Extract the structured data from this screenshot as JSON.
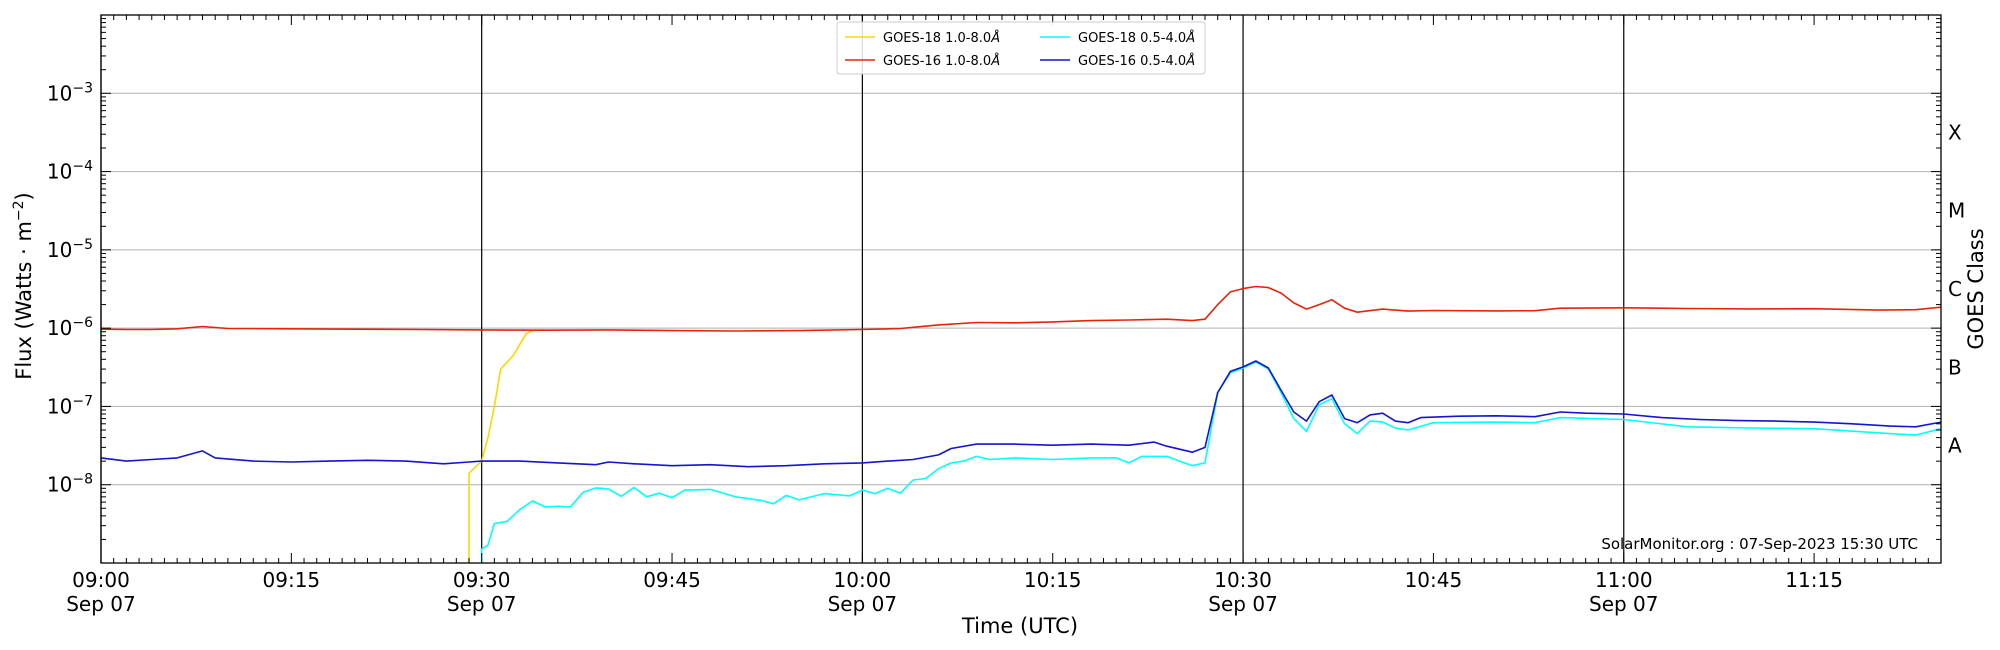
{
  "chart_data": {
    "type": "line",
    "xlabel": "Time (UTC)",
    "ylabel_main": "Flux (Watts · m",
    "ylabel_sup": "−2",
    "ylabel_close": ")",
    "right_axis_label": "GOES Class",
    "credit": "SolarMonitor.org : 07-Sep-2023 15:30 UTC",
    "y_scale": "log",
    "ylim": [
      1e-09,
      0.01
    ],
    "xlim": [
      "09:00",
      "11:25"
    ],
    "grid": "horizontal at decades",
    "legend_placement": "top-center",
    "x_ticks": [
      {
        "time": "09:00",
        "label": "09:00",
        "sublabel": "Sep 07"
      },
      {
        "time": "09:15",
        "label": "09:15",
        "sublabel": ""
      },
      {
        "time": "09:30",
        "label": "09:30",
        "sublabel": "Sep 07"
      },
      {
        "time": "09:45",
        "label": "09:45",
        "sublabel": ""
      },
      {
        "time": "10:00",
        "label": "10:00",
        "sublabel": "Sep 07"
      },
      {
        "time": "10:15",
        "label": "10:15",
        "sublabel": ""
      },
      {
        "time": "10:30",
        "label": "10:30",
        "sublabel": "Sep 07"
      },
      {
        "time": "10:45",
        "label": "10:45",
        "sublabel": ""
      },
      {
        "time": "11:00",
        "label": "11:00",
        "sublabel": "Sep 07"
      },
      {
        "time": "11:15",
        "label": "11:15",
        "sublabel": ""
      }
    ],
    "vertical_lines": [
      "09:00",
      "09:30",
      "10:00",
      "10:30",
      "11:00"
    ],
    "y_ticks": [
      {
        "exp": -8,
        "base": "10",
        "sup": "−8"
      },
      {
        "exp": -7,
        "base": "10",
        "sup": "−7"
      },
      {
        "exp": -6,
        "base": "10",
        "sup": "−6"
      },
      {
        "exp": -5,
        "base": "10",
        "sup": "−5"
      },
      {
        "exp": -4,
        "base": "10",
        "sup": "−4"
      },
      {
        "exp": -3,
        "base": "10",
        "sup": "−3"
      }
    ],
    "goes_classes": [
      {
        "label": "A",
        "flux": 3.16e-08
      },
      {
        "label": "B",
        "flux": 3.16e-07
      },
      {
        "label": "C",
        "flux": 3.16e-06
      },
      {
        "label": "M",
        "flux": 3.16e-05
      },
      {
        "label": "X",
        "flux": 0.000316
      }
    ],
    "series": [
      {
        "name": "GOES-18 1.0-8.0",
        "unit_label": "Å",
        "color": "#ffd700",
        "points": [
          [
            "09:29",
            1e-09
          ],
          [
            "09:29",
            1.4e-08
          ],
          [
            "09:30",
            2e-08
          ],
          [
            "09:30:30",
            4e-08
          ],
          [
            "09:31",
            1e-07
          ],
          [
            "09:31:30",
            3e-07
          ],
          [
            "09:32:30",
            4.5e-07
          ],
          [
            "09:33:30",
            8.5e-07
          ],
          [
            "09:34",
            9.3e-07
          ],
          [
            "09:35",
            9.5e-07
          ]
        ]
      },
      {
        "name": "GOES-16 1.0-8.0",
        "unit_label": "Å",
        "color": "#e8230a",
        "points": [
          [
            "09:00",
            9.7e-07
          ],
          [
            "09:02",
            9.6e-07
          ],
          [
            "09:04",
            9.6e-07
          ],
          [
            "09:06",
            9.8e-07
          ],
          [
            "09:08",
            1.05e-06
          ],
          [
            "09:10",
            9.9e-07
          ],
          [
            "09:15",
            9.8e-07
          ],
          [
            "09:20",
            9.7e-07
          ],
          [
            "09:25",
            9.6e-07
          ],
          [
            "09:30",
            9.5e-07
          ],
          [
            "09:35",
            9.4e-07
          ],
          [
            "09:40",
            9.5e-07
          ],
          [
            "09:45",
            9.3e-07
          ],
          [
            "09:50",
            9.2e-07
          ],
          [
            "09:55",
            9.3e-07
          ],
          [
            "10:00",
            9.6e-07
          ],
          [
            "10:03",
            9.9e-07
          ],
          [
            "10:06",
            1.1e-06
          ],
          [
            "10:09",
            1.18e-06
          ],
          [
            "10:12",
            1.17e-06
          ],
          [
            "10:15",
            1.2e-06
          ],
          [
            "10:18",
            1.25e-06
          ],
          [
            "10:21",
            1.27e-06
          ],
          [
            "10:24",
            1.3e-06
          ],
          [
            "10:26",
            1.25e-06
          ],
          [
            "10:27",
            1.3e-06
          ],
          [
            "10:28",
            2e-06
          ],
          [
            "10:29",
            2.9e-06
          ],
          [
            "10:30",
            3.2e-06
          ],
          [
            "10:31",
            3.4e-06
          ],
          [
            "10:32",
            3.3e-06
          ],
          [
            "10:33",
            2.8e-06
          ],
          [
            "10:34",
            2.1e-06
          ],
          [
            "10:35",
            1.75e-06
          ],
          [
            "10:36",
            2e-06
          ],
          [
            "10:37",
            2.3e-06
          ],
          [
            "10:38",
            1.8e-06
          ],
          [
            "10:39",
            1.6e-06
          ],
          [
            "10:41",
            1.75e-06
          ],
          [
            "10:43",
            1.65e-06
          ],
          [
            "10:45",
            1.68e-06
          ],
          [
            "10:50",
            1.66e-06
          ],
          [
            "10:53",
            1.67e-06
          ],
          [
            "10:55",
            1.8e-06
          ],
          [
            "11:00",
            1.82e-06
          ],
          [
            "11:05",
            1.78e-06
          ],
          [
            "11:10",
            1.76e-06
          ],
          [
            "11:15",
            1.77e-06
          ],
          [
            "11:20",
            1.7e-06
          ],
          [
            "11:23",
            1.72e-06
          ],
          [
            "11:25",
            1.85e-06
          ]
        ]
      },
      {
        "name": "GOES-18 0.5-4.0",
        "unit_label": "Å",
        "color": "#00ffff",
        "points": [
          [
            "09:30",
            1e-09
          ],
          [
            "09:30",
            1.5e-09
          ],
          [
            "09:30:30",
            1.7e-09
          ],
          [
            "09:31",
            3.2e-09
          ],
          [
            "09:32",
            3.4e-09
          ],
          [
            "09:33",
            4.8e-09
          ],
          [
            "09:34",
            6.2e-09
          ],
          [
            "09:35",
            5.2e-09
          ],
          [
            "09:36",
            5.3e-09
          ],
          [
            "09:37",
            5.2e-09
          ],
          [
            "09:38",
            8e-09
          ],
          [
            "09:39",
            9.1e-09
          ],
          [
            "09:40",
            8.8e-09
          ],
          [
            "09:41",
            7.1e-09
          ],
          [
            "09:42",
            9.2e-09
          ],
          [
            "09:43",
            7e-09
          ],
          [
            "09:44",
            7.8e-09
          ],
          [
            "09:45",
            6.8e-09
          ],
          [
            "09:46",
            8.5e-09
          ],
          [
            "09:48",
            8.7e-09
          ],
          [
            "09:50",
            7e-09
          ],
          [
            "09:52",
            6.3e-09
          ],
          [
            "09:53",
            5.7e-09
          ],
          [
            "09:54",
            7.3e-09
          ],
          [
            "09:55",
            6.4e-09
          ],
          [
            "09:57",
            7.7e-09
          ],
          [
            "09:59",
            7.2e-09
          ],
          [
            "10:00",
            8.5e-09
          ],
          [
            "10:01",
            7.7e-09
          ],
          [
            "10:02",
            9e-09
          ],
          [
            "10:03",
            7.8e-09
          ],
          [
            "10:04",
            1.15e-08
          ],
          [
            "10:05",
            1.2e-08
          ],
          [
            "10:06",
            1.6e-08
          ],
          [
            "10:07",
            1.9e-08
          ],
          [
            "10:08",
            2e-08
          ],
          [
            "10:09",
            2.3e-08
          ],
          [
            "10:10",
            2.1e-08
          ],
          [
            "10:12",
            2.2e-08
          ],
          [
            "10:15",
            2.1e-08
          ],
          [
            "10:18",
            2.2e-08
          ],
          [
            "10:20",
            2.2e-08
          ],
          [
            "10:21",
            1.9e-08
          ],
          [
            "10:22",
            2.3e-08
          ],
          [
            "10:24",
            2.3e-08
          ],
          [
            "10:25",
            2e-08
          ],
          [
            "10:26",
            1.75e-08
          ],
          [
            "10:27",
            1.9e-08
          ],
          [
            "10:28",
            1.5e-07
          ],
          [
            "10:29",
            2.7e-07
          ],
          [
            "10:30",
            3.1e-07
          ],
          [
            "10:31",
            3.7e-07
          ],
          [
            "10:32",
            3e-07
          ],
          [
            "10:33",
            1.5e-07
          ],
          [
            "10:34",
            7e-08
          ],
          [
            "10:35",
            4.8e-08
          ],
          [
            "10:36",
            1.05e-07
          ],
          [
            "10:37",
            1.25e-07
          ],
          [
            "10:38",
            6e-08
          ],
          [
            "10:39",
            4.5e-08
          ],
          [
            "10:40",
            6.5e-08
          ],
          [
            "10:41",
            6.3e-08
          ],
          [
            "10:42",
            5.3e-08
          ],
          [
            "10:43",
            5e-08
          ],
          [
            "10:45",
            6.2e-08
          ],
          [
            "10:50",
            6.3e-08
          ],
          [
            "10:53",
            6.2e-08
          ],
          [
            "10:55",
            7.2e-08
          ],
          [
            "11:00",
            6.8e-08
          ],
          [
            "11:05",
            5.5e-08
          ],
          [
            "11:10",
            5.3e-08
          ],
          [
            "11:15",
            5.2e-08
          ],
          [
            "11:20",
            4.6e-08
          ],
          [
            "11:23",
            4.3e-08
          ],
          [
            "11:25",
            5.2e-08
          ]
        ]
      },
      {
        "name": "GOES-16 0.5-4.0",
        "unit_label": "Å",
        "color": "#1414d2",
        "points": [
          [
            "09:00",
            2.2e-08
          ],
          [
            "09:02",
            2e-08
          ],
          [
            "09:04",
            2.1e-08
          ],
          [
            "09:06",
            2.2e-08
          ],
          [
            "09:08",
            2.7e-08
          ],
          [
            "09:09",
            2.2e-08
          ],
          [
            "09:12",
            2e-08
          ],
          [
            "09:15",
            1.95e-08
          ],
          [
            "09:18",
            2e-08
          ],
          [
            "09:21",
            2.05e-08
          ],
          [
            "09:24",
            2e-08
          ],
          [
            "09:27",
            1.85e-08
          ],
          [
            "09:29",
            1.95e-08
          ],
          [
            "09:30",
            2e-08
          ],
          [
            "09:33",
            2e-08
          ],
          [
            "09:36",
            1.9e-08
          ],
          [
            "09:39",
            1.8e-08
          ],
          [
            "09:40",
            1.95e-08
          ],
          [
            "09:42",
            1.85e-08
          ],
          [
            "09:45",
            1.75e-08
          ],
          [
            "09:48",
            1.8e-08
          ],
          [
            "09:51",
            1.7e-08
          ],
          [
            "09:54",
            1.75e-08
          ],
          [
            "09:57",
            1.85e-08
          ],
          [
            "10:00",
            1.9e-08
          ],
          [
            "10:02",
            2e-08
          ],
          [
            "10:04",
            2.1e-08
          ],
          [
            "10:06",
            2.4e-08
          ],
          [
            "10:07",
            2.9e-08
          ],
          [
            "10:09",
            3.3e-08
          ],
          [
            "10:12",
            3.3e-08
          ],
          [
            "10:15",
            3.2e-08
          ],
          [
            "10:18",
            3.3e-08
          ],
          [
            "10:21",
            3.2e-08
          ],
          [
            "10:23",
            3.5e-08
          ],
          [
            "10:24",
            3.1e-08
          ],
          [
            "10:26",
            2.6e-08
          ],
          [
            "10:27",
            3e-08
          ],
          [
            "10:28",
            1.5e-07
          ],
          [
            "10:29",
            2.8e-07
          ],
          [
            "10:30",
            3.2e-07
          ],
          [
            "10:31",
            3.8e-07
          ],
          [
            "10:32",
            3.1e-07
          ],
          [
            "10:33",
            1.6e-07
          ],
          [
            "10:34",
            8.5e-08
          ],
          [
            "10:35",
            6.5e-08
          ],
          [
            "10:36",
            1.15e-07
          ],
          [
            "10:37",
            1.4e-07
          ],
          [
            "10:38",
            7e-08
          ],
          [
            "10:39",
            6.2e-08
          ],
          [
            "10:40",
            7.8e-08
          ],
          [
            "10:41",
            8.2e-08
          ],
          [
            "10:42",
            6.5e-08
          ],
          [
            "10:43",
            6.2e-08
          ],
          [
            "10:44",
            7.2e-08
          ],
          [
            "10:47",
            7.5e-08
          ],
          [
            "10:50",
            7.6e-08
          ],
          [
            "10:53",
            7.4e-08
          ],
          [
            "10:55",
            8.5e-08
          ],
          [
            "10:57",
            8.2e-08
          ],
          [
            "11:00",
            8e-08
          ],
          [
            "11:03",
            7.2e-08
          ],
          [
            "11:06",
            6.8e-08
          ],
          [
            "11:09",
            6.6e-08
          ],
          [
            "11:12",
            6.5e-08
          ],
          [
            "11:15",
            6.3e-08
          ],
          [
            "11:18",
            6e-08
          ],
          [
            "11:21",
            5.6e-08
          ],
          [
            "11:23",
            5.5e-08
          ],
          [
            "11:25",
            6.3e-08
          ]
        ]
      }
    ]
  }
}
